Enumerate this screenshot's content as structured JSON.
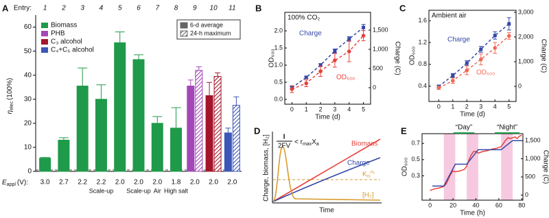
{
  "chart_data": [
    {
      "type": "bar",
      "panel": "A",
      "entry_label": "Entry:",
      "categories": [
        "1",
        "2",
        "3",
        "4",
        "5",
        "6",
        "7",
        "8",
        "9",
        "10",
        "11"
      ],
      "y_label": {
        "symbol": "η",
        "subscript": "elec",
        "unit": "(100%)"
      },
      "x_label": {
        "symbol": "E",
        "subscript": "appl",
        "unit": "(V):"
      },
      "voltages": [
        "3.0",
        "2.7",
        "2.2",
        "2.2",
        "2.0",
        "2.0",
        "2.0",
        "1.8",
        "2.0",
        "2.0",
        "2.0"
      ],
      "conditions": [
        null,
        null,
        null,
        "Scale-up",
        null,
        "Scale-up",
        "Air",
        "High salt",
        null,
        null,
        null
      ],
      "ylim": [
        0,
        65
      ],
      "yticks": [
        0,
        10,
        20,
        30,
        40,
        50,
        60
      ],
      "bar_colors": [
        "#1f9a4a",
        "#1f9a4a",
        "#1f9a4a",
        "#1f9a4a",
        "#1f9a4a",
        "#1f9a4a",
        "#1f9a4a",
        "#1f9a4a",
        "#a347b8",
        "#a3162a",
        "#3b56b5"
      ],
      "product_legend": [
        {
          "name": "Biomass",
          "color": "#1f9a4a"
        },
        {
          "name": "PHB",
          "color": "#a347b8"
        },
        {
          "name": "C₃ alcohol",
          "color": "#a3162a"
        },
        {
          "name": "C₄+C₅ alcohol",
          "color": "#3b56b5"
        }
      ],
      "series": [
        {
          "name": "6-d average",
          "style": "solid",
          "values": [
            5.5,
            13,
            35.5,
            30,
            53.5,
            46.5,
            20,
            18,
            35.5,
            31.5,
            16
          ],
          "errors": [
            0.3,
            1,
            7.5,
            6,
            4.5,
            2,
            2.8,
            8.5,
            2.5,
            5.5,
            2
          ]
        },
        {
          "name": "24-h maximum",
          "style": "hatched",
          "values": [
            null,
            null,
            null,
            null,
            null,
            null,
            null,
            null,
            42,
            39.5,
            27.5
          ],
          "errors": [
            null,
            null,
            null,
            null,
            null,
            null,
            null,
            null,
            1.5,
            1.5,
            3.5
          ]
        }
      ]
    },
    {
      "type": "line",
      "panel": "B",
      "note": "100% CO₂",
      "x_label": "Time (d)",
      "y_label": "OD₆₀₀",
      "y2_label": "Charge (C)",
      "x": [
        0,
        1,
        2,
        3,
        4,
        5
      ],
      "xlim": [
        -0.5,
        5.5
      ],
      "xticks": [
        0,
        1,
        2,
        3,
        4,
        5
      ],
      "ylim": [
        -0.14,
        2.54
      ],
      "yticks": [
        {
          "value": 0,
          "label": "0.0"
        },
        0.5,
        {
          "value": 1,
          "label": "1.0"
        },
        1.5,
        {
          "value": 2,
          "label": "2.0"
        }
      ],
      "y2lim": [
        -430,
        1965
      ],
      "y2ticks": [
        0,
        500,
        {
          "value": 1000,
          "label": "1,000"
        },
        {
          "value": 1500,
          "label": "1,500"
        }
      ],
      "series": [
        {
          "name": "Charge",
          "color": "#3347a6",
          "axis": "y2",
          "marker": "square",
          "dashed": true,
          "values": [
            0,
            270,
            590,
            960,
            1270,
            1570
          ],
          "errors": [
            30,
            30,
            40,
            50,
            60,
            80
          ]
        },
        {
          "name": "OD₆₀₀",
          "color": "#e8403a",
          "marker": "circle",
          "dashed": true,
          "values": [
            0.3,
            0.47,
            0.82,
            1.14,
            1.4,
            1.86
          ],
          "errors": [
            0.1,
            0.1,
            0.15,
            0.2,
            0.3,
            0.15
          ]
        }
      ]
    },
    {
      "type": "line",
      "panel": "C",
      "note": "Ambient air",
      "x_label": "Time (d)",
      "y_label": "OD₆₀₀",
      "y2_label": "Charge (C)",
      "x": [
        0,
        1,
        2,
        3,
        4,
        5
      ],
      "xlim": [
        -0.7,
        5.5
      ],
      "xticks": [
        0,
        1,
        2,
        3,
        4,
        5
      ],
      "ylim": [
        0.12,
        1.79
      ],
      "yticks": [
        0.4,
        0.8,
        1.2,
        1.6
      ],
      "y2lim": [
        -610,
        3080
      ],
      "y2ticks": [
        0,
        {
          "value": 1000,
          "label": "1,000"
        },
        {
          "value": 2000,
          "label": "2,000"
        },
        {
          "value": 3000,
          "label": "3,000"
        }
      ],
      "series": [
        {
          "name": "Charge",
          "color": "#3347a6",
          "axis": "y2",
          "marker": "square",
          "dashed": true,
          "values": [
            0,
            440,
            940,
            1500,
            2060,
            2530
          ],
          "errors": [
            50,
            80,
            100,
            120,
            150,
            250
          ]
        },
        {
          "name": "OD₆₀₀",
          "color": "#f06a55",
          "marker": "circle",
          "dashed": true,
          "values": [
            0.37,
            0.5,
            0.69,
            0.89,
            1.1,
            1.32
          ],
          "errors": [
            0.03,
            0.05,
            0.08,
            0.1,
            0.1,
            0.06
          ]
        }
      ]
    },
    {
      "type": "schematic",
      "panel": "D",
      "y_label": "Charge, biomass, [H₂]",
      "x_label": "Time",
      "formula": {
        "numerator": "I",
        "denominator": "2FV",
        "relation": "< r",
        "relation_subscript": "max",
        "variable": "X",
        "variable_subscript": "a"
      },
      "curve_labels": [
        "Biomass",
        "Charge",
        "[H₂]"
      ],
      "threshold_label": {
        "symbol": "K",
        "subscript": "m",
        "superscript": "H₂"
      }
    },
    {
      "type": "line",
      "panel": "E",
      "x_label": "Time (h)",
      "y_label": "OD₆₀₀",
      "y2_label": "Charge (C)",
      "annotations": [
        "“Day”",
        "“Night”"
      ],
      "annotation_color": "#1f9a4a",
      "xlim": [
        -7,
        81
      ],
      "xticks": [
        0,
        20,
        40,
        60,
        80
      ],
      "ylim": [
        0,
        0.82
      ],
      "yticks": [
        0.3,
        0.5,
        0.7
      ],
      "y2lim": [
        -140,
        1690
      ],
      "y2ticks": [
        0,
        500,
        {
          "value": 1000,
          "label": "1,000"
        },
        {
          "value": 1500,
          "label": "1,500"
        }
      ],
      "shaded_ranges": [
        [
          12,
          22
        ],
        [
          32,
          42
        ],
        [
          62,
          72
        ]
      ],
      "shade_color": "#f6c9e0",
      "series": [
        {
          "color": "#e8403a",
          "x": [
            0,
            4,
            8,
            12,
            14,
            16,
            18,
            20,
            22,
            26,
            30,
            32,
            34,
            36,
            38,
            40,
            42,
            46,
            50,
            54,
            58,
            62,
            64,
            66,
            68,
            70,
            72,
            74,
            76,
            78,
            80
          ],
          "values": [
            0.12,
            0.14,
            0.15,
            0.17,
            0.2,
            0.26,
            0.32,
            0.36,
            0.35,
            0.36,
            0.38,
            0.42,
            0.5,
            0.56,
            0.6,
            0.6,
            0.58,
            0.6,
            0.61,
            0.63,
            0.64,
            0.66,
            0.7,
            0.74,
            0.77,
            0.76,
            0.77,
            0.78,
            0.76,
            0.79,
            0.8
          ]
        },
        {
          "color": "#3347a6",
          "axis": "y2",
          "x": [
            2,
            12,
            22,
            32,
            42,
            62,
            72,
            80
          ],
          "values": [
            250,
            250,
            850,
            850,
            1250,
            1250,
            1500,
            1500
          ]
        }
      ]
    }
  ]
}
